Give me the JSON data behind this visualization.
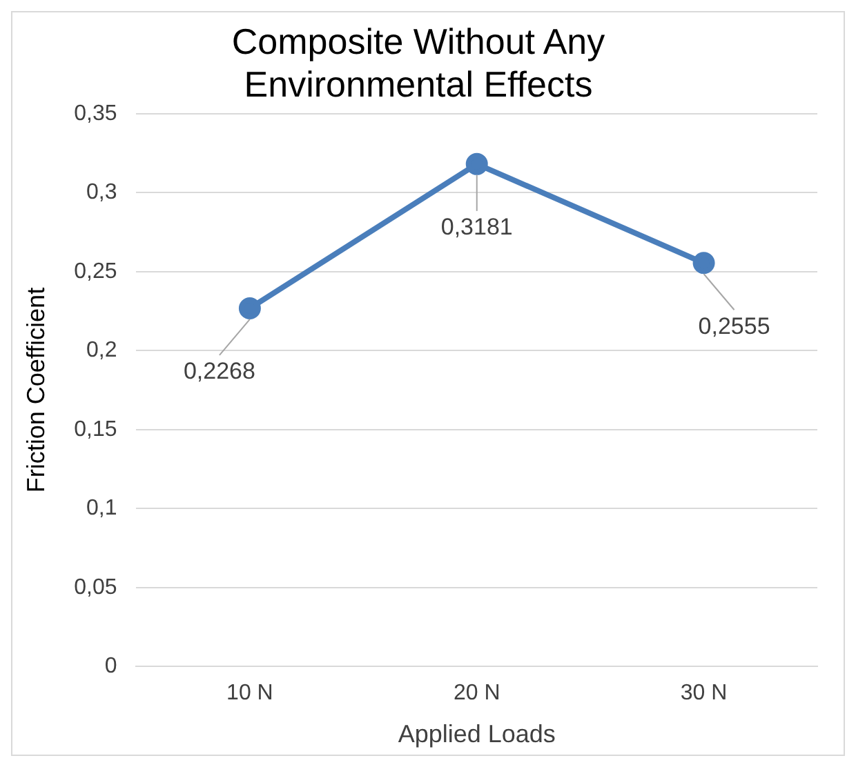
{
  "chart_data": {
    "type": "line",
    "title": "Composite Without Any Environmental Effects",
    "xlabel": "Applied Loads",
    "ylabel": "Friction Coefficient",
    "categories": [
      "10 N",
      "20 N",
      "30 N"
    ],
    "series": [
      {
        "color": "#4a7ebb",
        "values": [
          0.2268,
          0.3181,
          0.2555
        ],
        "value_labels": [
          "0,2268",
          "0,3181",
          "0,2555"
        ]
      }
    ],
    "ylim": [
      0,
      0.35
    ],
    "yticks": [
      {
        "value": 0,
        "label": "0"
      },
      {
        "value": 0.05,
        "label": "0,05"
      },
      {
        "value": 0.1,
        "label": "0,1"
      },
      {
        "value": 0.15,
        "label": "0,15"
      },
      {
        "value": 0.2,
        "label": "0,2"
      },
      {
        "value": 0.25,
        "label": "0,25"
      },
      {
        "value": 0.3,
        "label": "0,3"
      },
      {
        "value": 0.35,
        "label": "0,35"
      }
    ],
    "grid": "y",
    "legend": false,
    "marker": "circle",
    "line_style": "solid"
  }
}
